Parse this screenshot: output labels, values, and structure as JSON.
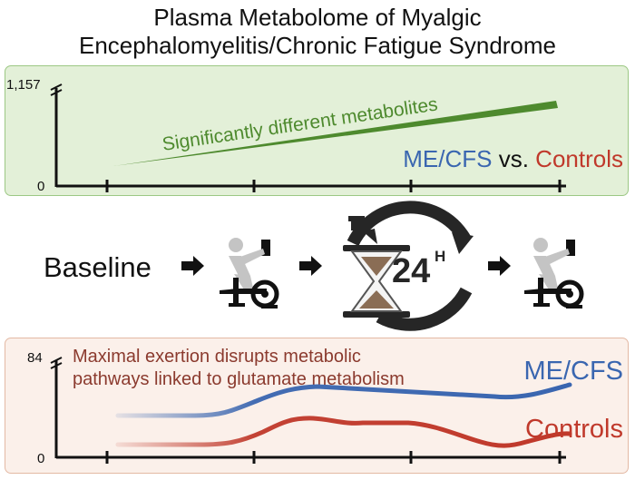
{
  "title": {
    "line1": "Plasma Metabolome of Myalgic",
    "line2": "Encephalomyelitis/Chronic Fatigue Syndrome"
  },
  "top_panel": {
    "y_max_label": "1,157",
    "y_min_label": "0",
    "trend_label": "Significantly different metabolites",
    "comparison": {
      "group1": "ME/CFS",
      "vs": "vs.",
      "group2": "Controls"
    },
    "colors": {
      "trend": "#4e8a2e",
      "group1": "#3a66b0",
      "group2": "#c0392b",
      "background": "#e3f0d8"
    }
  },
  "middle": {
    "baseline_label": "Baseline",
    "timer_label": "24",
    "timer_unit": "H",
    "icons": [
      "exercise-bike-icon",
      "hourglass-timer-icon",
      "exercise-bike-icon"
    ]
  },
  "bottom_panel": {
    "y_max_label": "84",
    "y_min_label": "0",
    "description_line1": "Maximal exertion disrupts metabolic",
    "description_line2": "pathways linked to glutamate metabolism",
    "series_labels": {
      "mecfs": "ME/CFS",
      "controls": "Controls"
    },
    "colors": {
      "mecfs": "#3a66b0",
      "controls": "#c0392b",
      "text": "#8b3a2e",
      "background": "#fbf0ea"
    }
  }
}
